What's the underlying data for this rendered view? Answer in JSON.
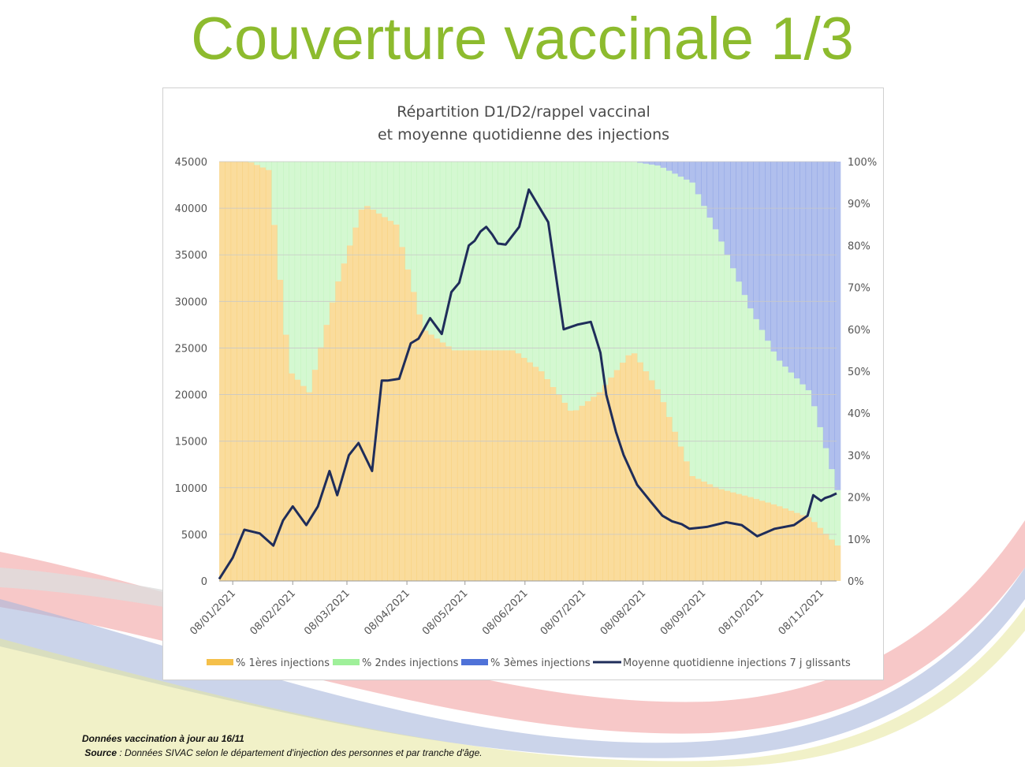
{
  "slide": {
    "title": "Couverture vaccinale 1/3",
    "footnote_line1": "Données vaccination à jour au 16/11",
    "footnote_source_label": "Source",
    "footnote_source_text": " : Données SIVAC selon le département d'injection des personnes et par tranche d'âge.",
    "title_color": "#8dbb2e"
  },
  "chart_data": {
    "type": "bar",
    "title_line1": "Répartition D1/D2/rappel vaccinal",
    "title_line2": "et moyenne quotidienne des injections",
    "left_axis": {
      "ylim": [
        0,
        45000
      ],
      "ticks": [
        "0",
        "5000",
        "10000",
        "15000",
        "20000",
        "25000",
        "30000",
        "35000",
        "40000",
        "45000"
      ]
    },
    "right_axis": {
      "ylim": [
        0,
        1
      ],
      "ticks": [
        "0%",
        "10%",
        "20%",
        "30%",
        "40%",
        "50%",
        "60%",
        "70%",
        "80%",
        "90%",
        "100%"
      ]
    },
    "x_ticks": [
      "08/01/2021",
      "08/02/2021",
      "08/03/2021",
      "08/04/2021",
      "08/05/2021",
      "08/06/2021",
      "08/07/2021",
      "08/08/2021",
      "08/09/2021",
      "08/10/2021",
      "08/11/2021"
    ],
    "legend_position": "bottom",
    "colors": {
      "first": "#f5c04a",
      "second": "#9ff09a",
      "third": "#4f72d8",
      "line": "#1f2d5a"
    },
    "series": [
      {
        "name": "% 1ères injections",
        "kind": "stacked_share",
        "x": [
          "2021-01-04",
          "2021-01-15",
          "2021-01-25",
          "2021-02-05",
          "2021-02-15",
          "2021-03-01",
          "2021-03-15",
          "2021-04-01",
          "2021-04-15",
          "2021-05-01",
          "2021-05-15",
          "2021-06-01",
          "2021-06-15",
          "2021-07-01",
          "2021-07-15",
          "2021-08-01",
          "2021-08-15",
          "2021-09-01",
          "2021-09-15",
          "2021-10-01",
          "2021-10-15",
          "2021-11-01",
          "2021-11-16"
        ],
        "values": [
          1.0,
          1.0,
          0.98,
          0.5,
          0.45,
          0.7,
          0.9,
          0.85,
          0.6,
          0.55,
          0.55,
          0.55,
          0.5,
          0.4,
          0.45,
          0.55,
          0.45,
          0.25,
          0.22,
          0.2,
          0.18,
          0.15,
          0.08
        ]
      },
      {
        "name": "% 2ndes injections",
        "kind": "stacked_share",
        "x": [
          "2021-01-04",
          "2021-01-15",
          "2021-01-25",
          "2021-02-05",
          "2021-02-15",
          "2021-03-01",
          "2021-03-15",
          "2021-04-01",
          "2021-04-15",
          "2021-05-01",
          "2021-05-15",
          "2021-06-01",
          "2021-06-15",
          "2021-07-01",
          "2021-07-15",
          "2021-08-01",
          "2021-08-15",
          "2021-09-01",
          "2021-09-15",
          "2021-10-01",
          "2021-10-15",
          "2021-11-01",
          "2021-11-16"
        ],
        "values": [
          0.0,
          0.0,
          0.02,
          0.5,
          0.55,
          0.3,
          0.1,
          0.15,
          0.4,
          0.45,
          0.45,
          0.45,
          0.5,
          0.6,
          0.55,
          0.45,
          0.54,
          0.7,
          0.6,
          0.45,
          0.35,
          0.3,
          0.12
        ]
      },
      {
        "name": "% 3èmes injections",
        "kind": "stacked_share",
        "x": [
          "2021-01-04",
          "2021-01-15",
          "2021-01-25",
          "2021-02-05",
          "2021-02-15",
          "2021-03-01",
          "2021-03-15",
          "2021-04-01",
          "2021-04-15",
          "2021-05-01",
          "2021-05-15",
          "2021-06-01",
          "2021-06-15",
          "2021-07-01",
          "2021-07-15",
          "2021-08-01",
          "2021-08-15",
          "2021-09-01",
          "2021-09-15",
          "2021-10-01",
          "2021-10-15",
          "2021-11-01",
          "2021-11-16"
        ],
        "values": [
          0.0,
          0.0,
          0.0,
          0.0,
          0.0,
          0.0,
          0.0,
          0.0,
          0.0,
          0.0,
          0.0,
          0.0,
          0.0,
          0.0,
          0.0,
          0.0,
          0.01,
          0.05,
          0.18,
          0.35,
          0.47,
          0.55,
          0.8
        ]
      },
      {
        "name": "Moyenne quotidienne injections 7 j glissants",
        "kind": "line",
        "x": [
          "2021-01-01",
          "2021-01-08",
          "2021-01-14",
          "2021-01-22",
          "2021-01-29",
          "2021-02-03",
          "2021-02-08",
          "2021-02-15",
          "2021-02-21",
          "2021-02-27",
          "2021-03-03",
          "2021-03-09",
          "2021-03-14",
          "2021-03-21",
          "2021-03-26",
          "2021-03-29",
          "2021-04-04",
          "2021-04-10",
          "2021-04-14",
          "2021-04-20",
          "2021-04-26",
          "2021-05-01",
          "2021-05-05",
          "2021-05-10",
          "2021-05-13",
          "2021-05-16",
          "2021-05-19",
          "2021-05-22",
          "2021-05-25",
          "2021-05-29",
          "2021-06-05",
          "2021-06-10",
          "2021-06-20",
          "2021-06-28",
          "2021-07-05",
          "2021-07-12",
          "2021-07-14",
          "2021-07-17",
          "2021-07-20",
          "2021-07-25",
          "2021-07-29",
          "2021-08-05",
          "2021-08-12",
          "2021-08-18",
          "2021-08-23",
          "2021-08-28",
          "2021-09-01",
          "2021-09-10",
          "2021-09-20",
          "2021-09-28",
          "2021-10-06",
          "2021-10-15",
          "2021-10-25",
          "2021-11-01",
          "2021-11-04",
          "2021-11-08",
          "2021-11-10",
          "2021-11-13",
          "2021-11-16"
        ],
        "values": [
          200,
          2500,
          5500,
          5100,
          3800,
          6500,
          8000,
          6000,
          8000,
          11800,
          9200,
          13500,
          14800,
          11800,
          21500,
          21500,
          21700,
          25500,
          26000,
          28200,
          26500,
          31000,
          32000,
          36000,
          36500,
          37500,
          38000,
          37200,
          36200,
          36100,
          38000,
          42000,
          38500,
          27000,
          27500,
          27800,
          26500,
          24500,
          20000,
          16000,
          13500,
          10300,
          8500,
          7000,
          6400,
          6100,
          5600,
          5800,
          6300,
          6000,
          4800,
          5600,
          6000,
          7000,
          9200,
          8600,
          8900,
          9100,
          9400
        ]
      }
    ]
  }
}
